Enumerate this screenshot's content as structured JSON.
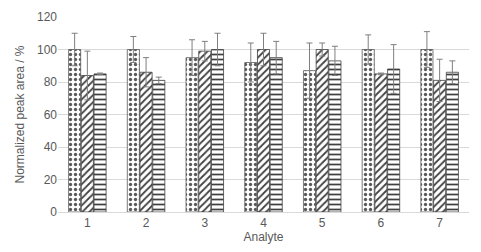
{
  "chart_data": {
    "type": "bar",
    "x_label": "Analyte",
    "y_label": "Normalized peak area / %",
    "categories": [
      "1",
      "2",
      "3",
      "4",
      "5",
      "6",
      "7"
    ],
    "series": [
      {
        "color": "#595959",
        "marker": "dots",
        "values": [
          100,
          100,
          95,
          92,
          87,
          100,
          100
        ],
        "errors": [
          10,
          8,
          11,
          12,
          17,
          9,
          11
        ]
      },
      {
        "color": "#404040",
        "marker": "diagonal",
        "values": [
          84,
          86,
          99,
          100,
          100,
          85,
          81
        ],
        "errors": [
          15,
          9,
          6,
          10,
          4,
          0.5,
          13
        ]
      },
      {
        "color": "#404040",
        "marker": "horizontal",
        "values": [
          85,
          81,
          100,
          95,
          93,
          88,
          86
        ],
        "errors": [
          0.5,
          2,
          10,
          10,
          9,
          15,
          7
        ]
      }
    ],
    "ylim": [
      0,
      120
    ],
    "yticks": [
      0,
      20,
      40,
      60,
      80,
      100,
      120
    ],
    "grid": true
  }
}
